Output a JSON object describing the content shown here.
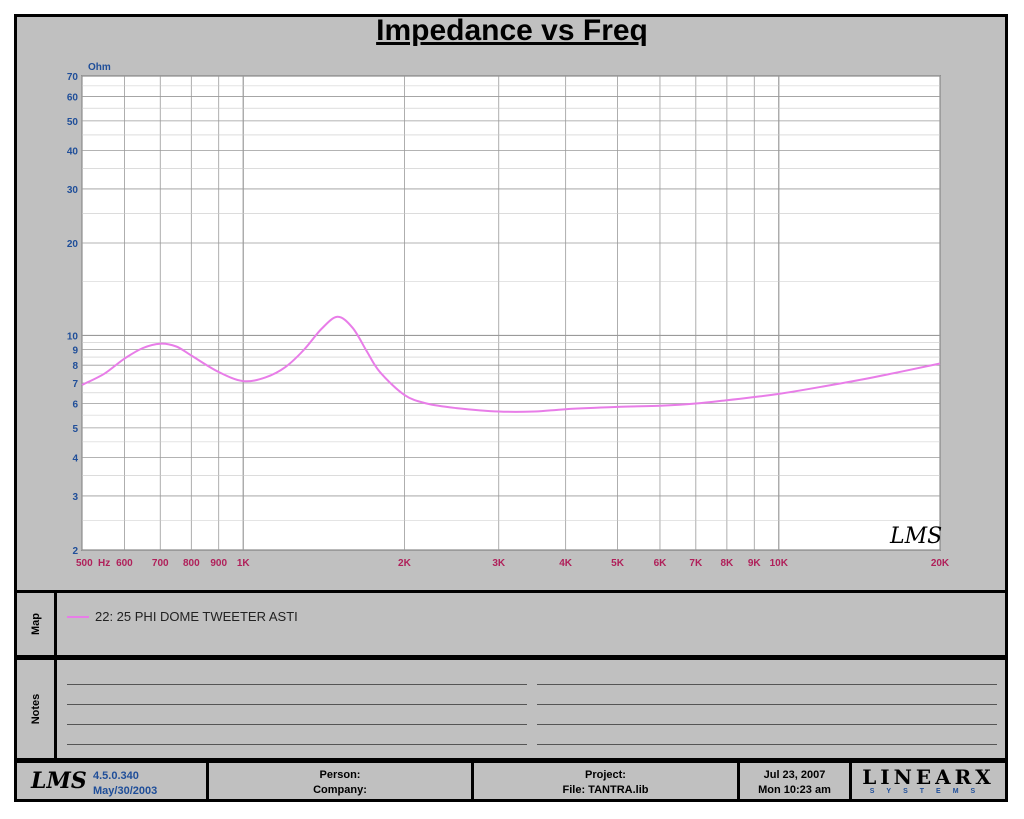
{
  "chart_data": {
    "type": "line",
    "title": "Impedance vs Freq",
    "ylabel": "Ohm",
    "xscale": "log",
    "yscale": "log",
    "xlim": [
      500,
      20000
    ],
    "ylim": [
      2,
      70
    ],
    "grid": true,
    "x_ticks": [
      {
        "value": 500,
        "label": "500"
      },
      {
        "value": 550,
        "label": "Hz"
      },
      {
        "value": 600,
        "label": "600"
      },
      {
        "value": 700,
        "label": "700"
      },
      {
        "value": 800,
        "label": "800"
      },
      {
        "value": 900,
        "label": "900"
      },
      {
        "value": 1000,
        "label": "1K"
      },
      {
        "value": 2000,
        "label": "2K"
      },
      {
        "value": 3000,
        "label": "3K"
      },
      {
        "value": 4000,
        "label": "4K"
      },
      {
        "value": 5000,
        "label": "5K"
      },
      {
        "value": 6000,
        "label": "6K"
      },
      {
        "value": 7000,
        "label": "7K"
      },
      {
        "value": 8000,
        "label": "8K"
      },
      {
        "value": 9000,
        "label": "9K"
      },
      {
        "value": 10000,
        "label": "10K"
      },
      {
        "value": 20000,
        "label": "20K"
      }
    ],
    "y_ticks": [
      {
        "value": 2,
        "label": "2"
      },
      {
        "value": 3,
        "label": "3"
      },
      {
        "value": 4,
        "label": "4"
      },
      {
        "value": 5,
        "label": "5"
      },
      {
        "value": 6,
        "label": "6"
      },
      {
        "value": 7,
        "label": "7"
      },
      {
        "value": 8,
        "label": "8"
      },
      {
        "value": 9,
        "label": "9"
      },
      {
        "value": 10,
        "label": "10"
      },
      {
        "value": 20,
        "label": "20"
      },
      {
        "value": 30,
        "label": "30"
      },
      {
        "value": 40,
        "label": "40"
      },
      {
        "value": 50,
        "label": "50"
      },
      {
        "value": 60,
        "label": "60"
      },
      {
        "value": 70,
        "label": "70"
      }
    ],
    "series": [
      {
        "name": "22: 25 PHI DOME TWEETER ASTI",
        "color": "#e87de8",
        "x": [
          500,
          550,
          600,
          650,
          700,
          750,
          800,
          900,
          1000,
          1100,
          1200,
          1300,
          1400,
          1500,
          1600,
          1700,
          1800,
          2000,
          2200,
          2500,
          3000,
          3500,
          4000,
          5000,
          6000,
          7000,
          8000,
          9000,
          10000,
          12000,
          15000,
          20000
        ],
        "y": [
          6.9,
          7.5,
          8.4,
          9.1,
          9.4,
          9.2,
          8.6,
          7.6,
          7.1,
          7.3,
          7.9,
          9.0,
          10.5,
          11.5,
          10.6,
          8.9,
          7.6,
          6.4,
          6.0,
          5.8,
          5.65,
          5.65,
          5.75,
          5.85,
          5.9,
          6.0,
          6.15,
          6.3,
          6.45,
          6.8,
          7.3,
          8.1
        ]
      }
    ]
  },
  "watermark": "LMS",
  "map_label": "Map",
  "notes_label": "Notes",
  "footer": {
    "logo": "LMS",
    "version": "4.5.0.340",
    "version_date": "May/30/2003",
    "person_label": "Person:",
    "company_label": "Company:",
    "project_label": "Project:",
    "file_label": "File: TANTRA.lib",
    "date": "Jul 23, 2007",
    "time": "Mon 10:23 am",
    "brand_name": "LINEAR",
    "brand_mark": "X",
    "brand_sub": "SYSTEMS"
  },
  "colors": {
    "background": "#c0c0c0",
    "plot_bg": "#ffffff",
    "grid": "#9a9a9a",
    "y_tick": "#1f4e99",
    "x_tick": "#b0205a"
  }
}
